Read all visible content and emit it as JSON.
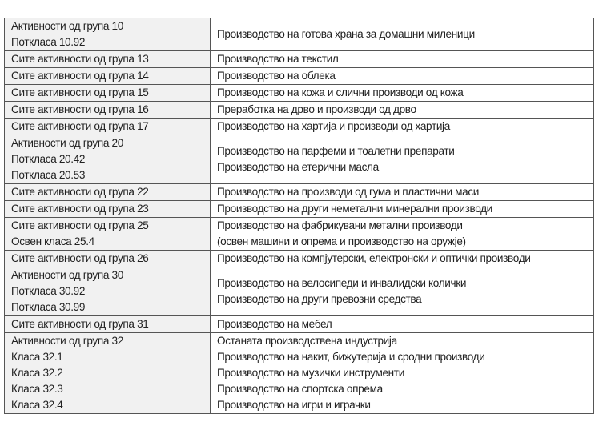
{
  "rows": [
    {
      "left": [
        "Активности од група 10",
        "Потклаcа 10.92"
      ],
      "right": [
        "Производство на готова храна за домашни миленици"
      ]
    },
    {
      "left": [
        "Сите активности од група 13"
      ],
      "right": [
        "Производство на текстил"
      ]
    },
    {
      "left": [
        "Сите активности од група 14"
      ],
      "right": [
        "Производство на облека"
      ]
    },
    {
      "left": [
        "Сите активности од група 15"
      ],
      "right": [
        "Производство на кожа и слични производи од кожа"
      ]
    },
    {
      "left": [
        "Сите активности од група 16"
      ],
      "right": [
        "Преработка на дрво и производи од дрво"
      ]
    },
    {
      "left": [
        "Сите активности од група 17"
      ],
      "right": [
        "Производство на хартија и производи од хартија"
      ]
    },
    {
      "left": [
        "Активности од група 20",
        "Потклаcа 20.42",
        "Потклаcа 20.53"
      ],
      "right": [
        "Производство на парфеми и тоалетни препарати",
        "Производство на етерични масла"
      ]
    },
    {
      "left": [
        "Сите активности од група 22"
      ],
      "right": [
        "Производство на производи од гума и пластични маси"
      ]
    },
    {
      "left": [
        "Сите активности од група 23"
      ],
      "right": [
        "Производство на други неметални минерални производи"
      ]
    },
    {
      "left": [
        "Сите активности од група 25",
        "Освен класа 25.4"
      ],
      "right": [
        "Производство на фабрикувани метални производи",
        "(освен машини и опрема и производство на оружје)"
      ]
    },
    {
      "left": [
        "Сите активности од група 26"
      ],
      "right": [
        "Производство на компјутерски, електронски и оптички производи"
      ]
    },
    {
      "left": [
        "Активности од група 30",
        "Потклаcа 30.92",
        "Потклаcа 30.99"
      ],
      "right": [
        "Производство на велосипеди и инвалидски колички",
        "Производство на други превозни средства"
      ]
    },
    {
      "left": [
        "Сите активности од група 31"
      ],
      "right": [
        "Производство на мебел"
      ]
    },
    {
      "left": [
        "Активности од група 32",
        "Класа 32.1",
        "Класа 32.2",
        "Класа 32.3",
        "Класа 32.4"
      ],
      "right": [
        "Останата производствена индустрија",
        "Производство на накит, бижутерија и сродни производи",
        "Производство на музички инструменти",
        "Производство на спортска опрема",
        "Производство на игри и играчки"
      ]
    }
  ]
}
